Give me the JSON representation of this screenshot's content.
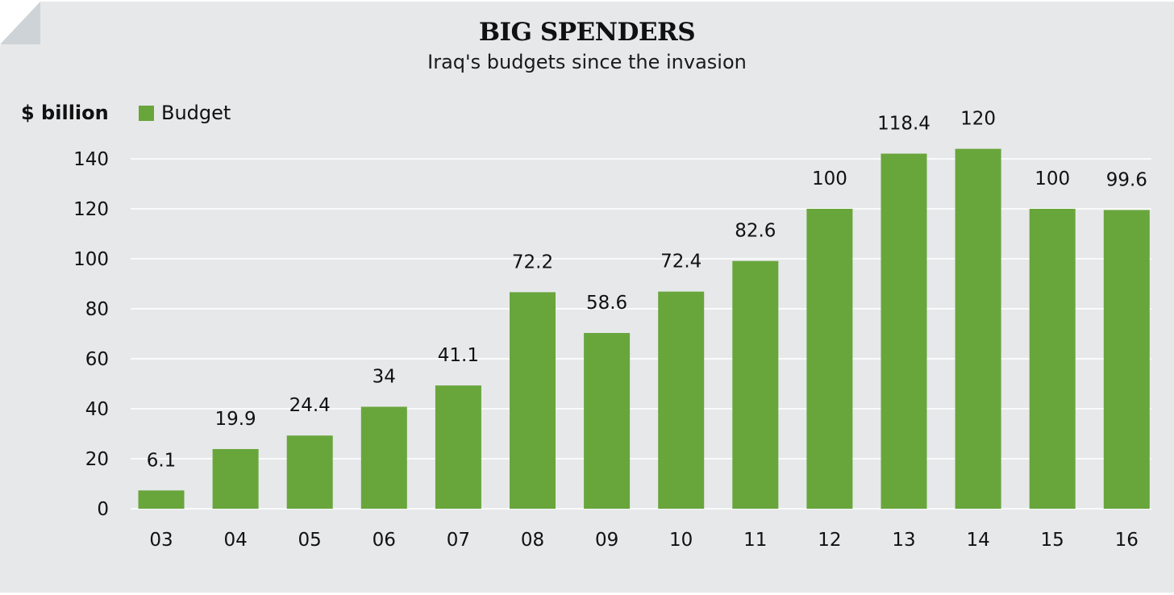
{
  "chart_data": {
    "type": "bar",
    "title": "BIG SPENDERS",
    "subtitle": "Iraq's budgets since the invasion",
    "xlabel": "",
    "ylabel": "$ billion",
    "ylim": [
      0,
      140
    ],
    "yticks": [
      0,
      20,
      40,
      60,
      80,
      100,
      120,
      140
    ],
    "grid": true,
    "legend": {
      "position": "top-left",
      "entries": [
        {
          "name": "Budget",
          "color": "#68a63c"
        }
      ]
    },
    "categories": [
      "03",
      "04",
      "05",
      "06",
      "07",
      "08",
      "09",
      "10",
      "11",
      "12",
      "13",
      "14",
      "15",
      "16"
    ],
    "series": [
      {
        "name": "Budget",
        "color": "#68a63c",
        "values": [
          6.1,
          19.9,
          24.4,
          34,
          41.1,
          72.2,
          58.6,
          72.4,
          82.6,
          100,
          118.4,
          120,
          100,
          99.6
        ],
        "labels": [
          "6.1",
          "19.9",
          "24.4",
          "34",
          "41.1",
          "72.2",
          "58.6",
          "72.4",
          "82.6",
          "100",
          "118.4",
          "120",
          "100",
          "99.6"
        ]
      }
    ]
  }
}
